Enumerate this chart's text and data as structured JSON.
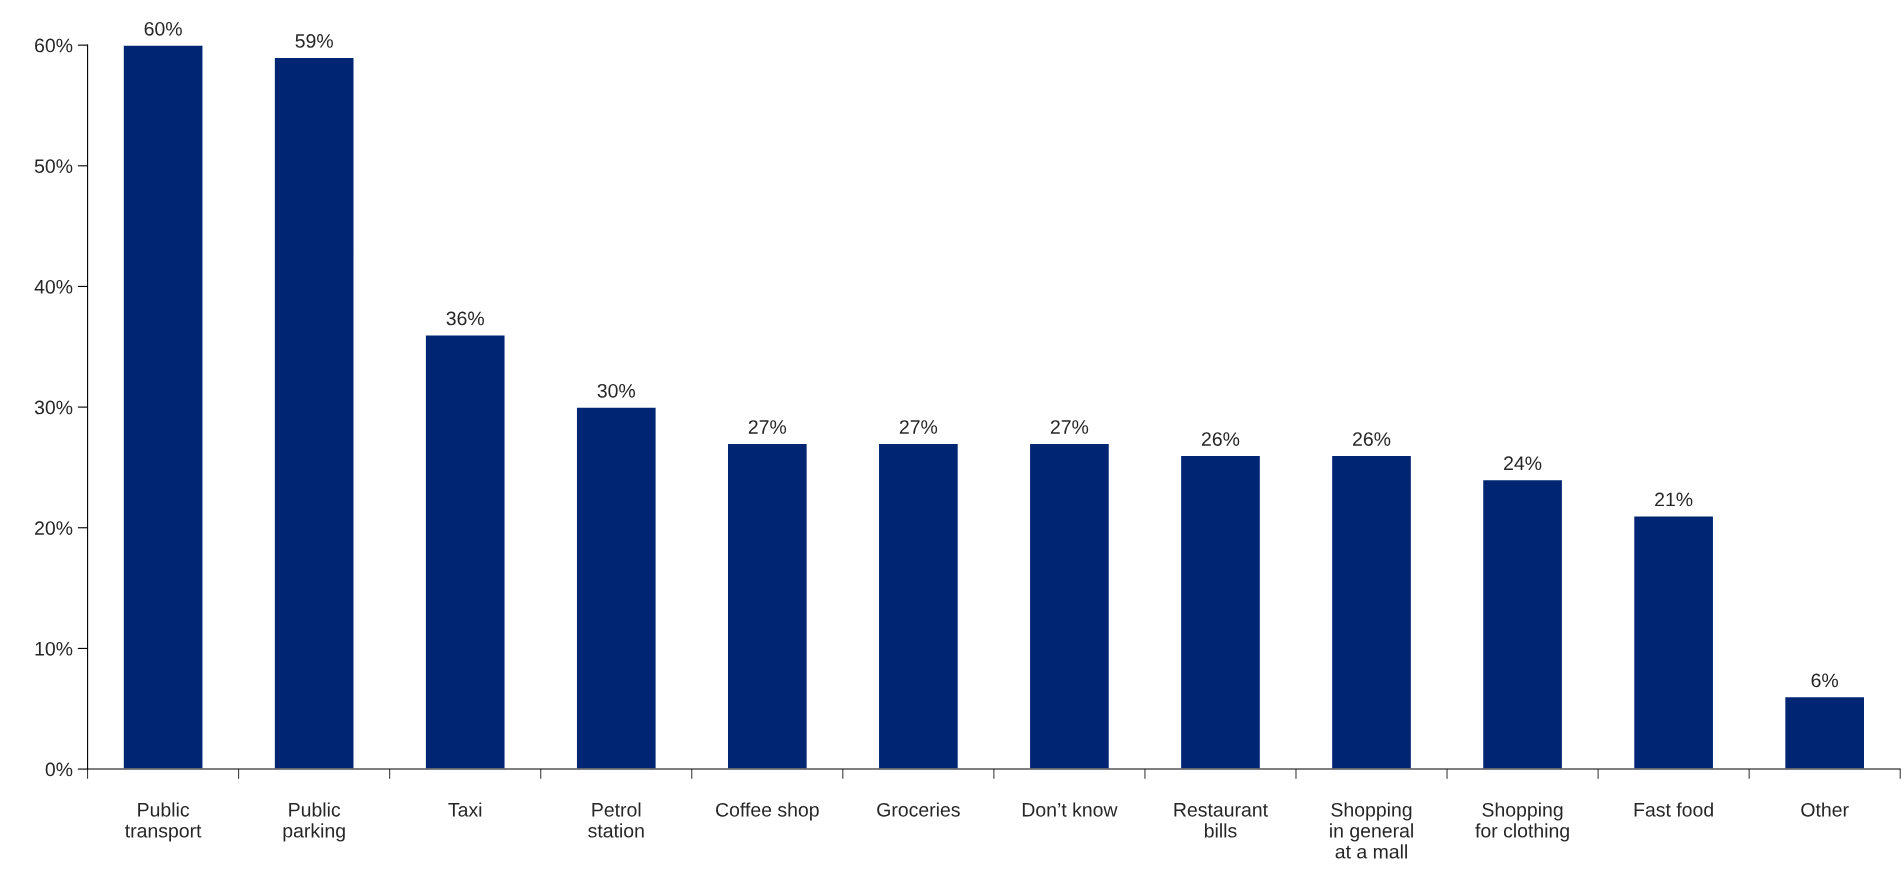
{
  "chart_data": {
    "type": "bar",
    "categories": [
      "Public\ntransport",
      "Public\nparking",
      "Taxi",
      "Petrol\nstation",
      "Coffee shop",
      "Groceries",
      "Don’t know",
      "Restaurant\nbills",
      "Shopping\nin general\nat a mall",
      "Shopping\nfor clothing",
      "Fast food",
      "Other"
    ],
    "values": [
      60,
      59,
      36,
      30,
      27,
      27,
      27,
      26,
      26,
      24,
      21,
      6
    ],
    "value_labels": [
      "60%",
      "59%",
      "36%",
      "30%",
      "27%",
      "27%",
      "27%",
      "26%",
      "26%",
      "24%",
      "21%",
      "6%"
    ],
    "color": "#002673",
    "ylim": [
      0,
      60
    ],
    "yticks": [
      {
        "value": 0,
        "label": "0%"
      },
      {
        "value": 10,
        "label": "10%"
      },
      {
        "value": 20,
        "label": "20%"
      },
      {
        "value": 30,
        "label": "30%"
      },
      {
        "value": 40,
        "label": "40%"
      },
      {
        "value": 50,
        "label": "50%"
      },
      {
        "value": 60,
        "label": "60%"
      }
    ],
    "grid": false,
    "legend": false
  }
}
